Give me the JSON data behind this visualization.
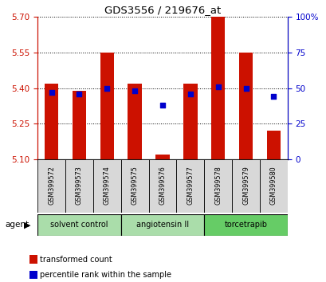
{
  "title": "GDS3556 / 219676_at",
  "samples": [
    "GSM399572",
    "GSM399573",
    "GSM399574",
    "GSM399575",
    "GSM399576",
    "GSM399577",
    "GSM399578",
    "GSM399579",
    "GSM399580"
  ],
  "red_values": [
    5.42,
    5.39,
    5.55,
    5.42,
    5.12,
    5.42,
    5.7,
    5.55,
    5.22
  ],
  "blue_values": [
    47,
    46,
    50,
    48,
    38,
    46,
    51,
    50,
    44
  ],
  "baseline": 5.1,
  "ylim_left": [
    5.1,
    5.7
  ],
  "ylim_right": [
    0,
    100
  ],
  "yticks_left": [
    5.1,
    5.25,
    5.4,
    5.55,
    5.7
  ],
  "yticks_right": [
    0,
    25,
    50,
    75,
    100
  ],
  "ytick_labels_right": [
    "0",
    "25",
    "50",
    "75",
    "100%"
  ],
  "groups": [
    {
      "label": "solvent control",
      "indices": [
        0,
        1,
        2
      ],
      "color": "#aaddaa"
    },
    {
      "label": "angiotensin II",
      "indices": [
        3,
        4,
        5
      ],
      "color": "#aaddaa"
    },
    {
      "label": "torcetrapib",
      "indices": [
        6,
        7,
        8
      ],
      "color": "#66cc66"
    }
  ],
  "bar_color": "#CC1100",
  "dot_color": "#0000CC",
  "bar_width": 0.5,
  "tick_label_color_left": "#CC1100",
  "tick_label_color_right": "#0000CC",
  "agent_label": "agent",
  "legend": [
    {
      "color": "#CC1100",
      "label": "transformed count"
    },
    {
      "color": "#0000CC",
      "label": "percentile rank within the sample"
    }
  ]
}
